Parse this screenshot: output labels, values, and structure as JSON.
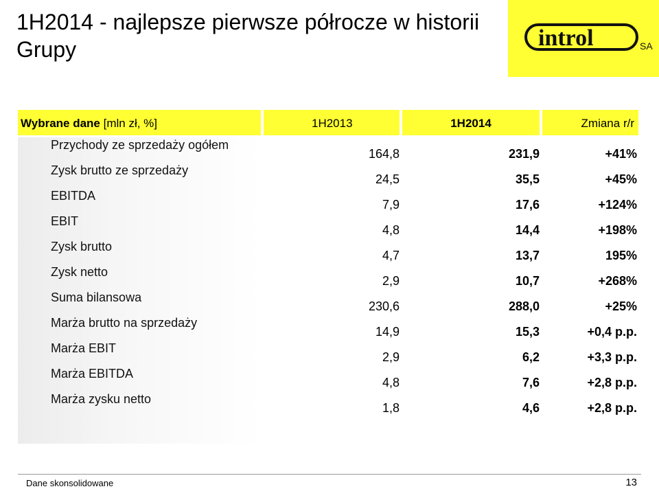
{
  "title": "1H2014 - najlepsze pierwsze półrocze w historii Grupy",
  "logo": {
    "brand": "introl",
    "suffix": "SA"
  },
  "table": {
    "header": {
      "label_bold": "Wybrane dane",
      "label_rest": " [mln zł, %]",
      "y2013": "1H2013",
      "y2014": "1H2014",
      "change": "Zmiana r/r"
    },
    "rows": [
      {
        "label": "Przychody ze sprzedaży ogółem",
        "y2013": "164,8",
        "y2014": "231,9",
        "change": "+41%"
      },
      {
        "label": "Zysk brutto ze sprzedaży",
        "y2013": "24,5",
        "y2014": "35,5",
        "change": "+45%"
      },
      {
        "label": "EBITDA",
        "y2013": "7,9",
        "y2014": "17,6",
        "change": "+124%"
      },
      {
        "label": "EBIT",
        "y2013": "4,8",
        "y2014": "14,4",
        "change": "+198%"
      },
      {
        "label": "Zysk brutto",
        "y2013": "4,7",
        "y2014": "13,7",
        "change": "195%"
      },
      {
        "label": "Zysk netto",
        "y2013": "2,9",
        "y2014": "10,7",
        "change": "+268%"
      },
      {
        "label": "Suma bilansowa",
        "y2013": "230,6",
        "y2014": "288,0",
        "change": "+25%"
      },
      {
        "label": "Marża brutto na sprzedaży",
        "y2013": "14,9",
        "y2014": "15,3",
        "change": "+0,4 p.p."
      },
      {
        "label": "Marża EBIT",
        "y2013": "2,9",
        "y2014": "6,2",
        "change": "+3,3 p.p."
      },
      {
        "label": "Marża EBITDA",
        "y2013": "4,8",
        "y2014": "7,6",
        "change": "+2,8 p.p."
      },
      {
        "label": "Marża zysku netto",
        "y2013": "1,8",
        "y2014": "4,6",
        "change": "+2,8 p.p."
      }
    ]
  },
  "footer": {
    "note": "Dane skonsolidowane",
    "page": "13"
  },
  "colors": {
    "accent": "#ffff33",
    "text": "#000000"
  }
}
